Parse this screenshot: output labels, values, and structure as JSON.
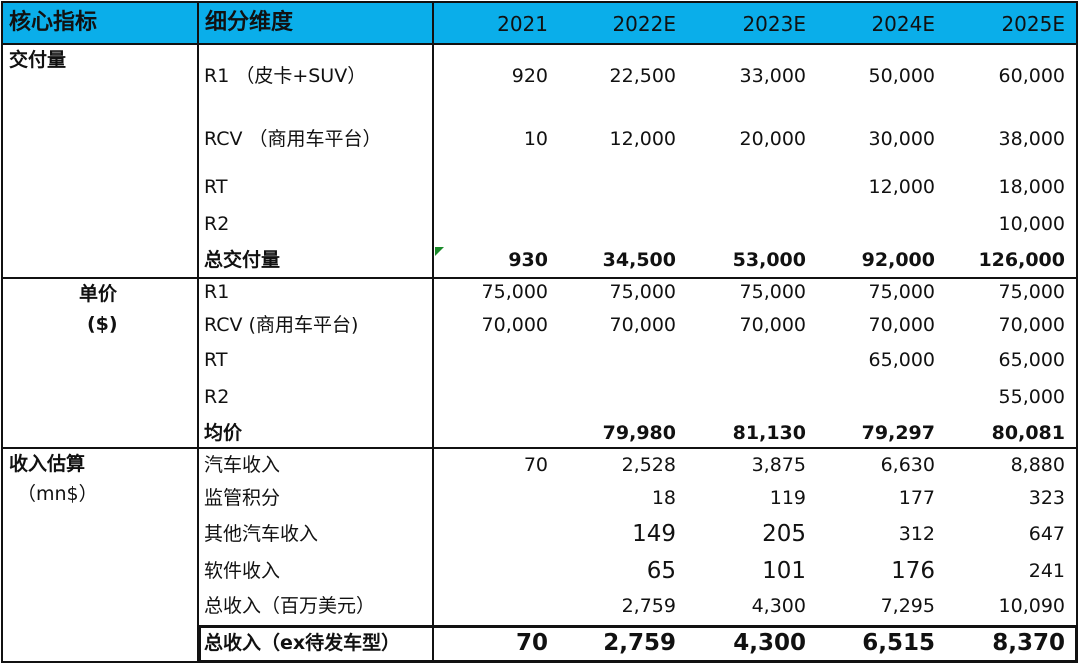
{
  "header": {
    "col_metric": "核心指标",
    "col_dimension": "细分维度",
    "years": [
      "2021",
      "2022E",
      "2023E",
      "2024E",
      "2025E"
    ]
  },
  "colors": {
    "header_bg": "#0aaeea",
    "border": "#111111"
  },
  "groups": [
    {
      "label": "交付量",
      "rows": [
        {
          "dimension": "R1 （皮卡+SUV）",
          "values": [
            "920",
            "22,500",
            "33,000",
            "50,000",
            "60,000"
          ]
        },
        {
          "dimension": "RCV （商用车平台）",
          "values": [
            "10",
            "12,000",
            "20,000",
            "30,000",
            "38,000"
          ]
        },
        {
          "dimension": "RT",
          "values": [
            "",
            "",
            "",
            "12,000",
            "18,000"
          ]
        },
        {
          "dimension": "R2",
          "values": [
            "",
            "",
            "",
            "",
            "10,000"
          ]
        },
        {
          "dimension": "总交付量",
          "values": [
            "930",
            "34,500",
            "53,000",
            "92,000",
            "126,000"
          ],
          "bold": true
        }
      ]
    },
    {
      "label": "单价",
      "sublabel": "($)",
      "rows": [
        {
          "dimension": "R1",
          "values": [
            "75,000",
            "75,000",
            "75,000",
            "75,000",
            "75,000"
          ]
        },
        {
          "dimension": "RCV (商用车平台)",
          "values": [
            "70,000",
            "70,000",
            "70,000",
            "70,000",
            "70,000"
          ]
        },
        {
          "dimension": "RT",
          "values": [
            "",
            "",
            "",
            "65,000",
            "65,000"
          ]
        },
        {
          "dimension": "R2",
          "values": [
            "",
            "",
            "",
            "",
            "55,000"
          ]
        },
        {
          "dimension": "均价",
          "values": [
            "",
            "79,980",
            "81,130",
            "79,297",
            "80,081"
          ],
          "bold": true
        }
      ]
    },
    {
      "label": "收入估算",
      "sublabel": "（mn$）",
      "rows": [
        {
          "dimension": "汽车收入",
          "values": [
            "70",
            "2,528",
            "3,875",
            "6,630",
            "8,880"
          ]
        },
        {
          "dimension": "监管积分",
          "values": [
            "",
            "18",
            "119",
            "177",
            "323"
          ]
        },
        {
          "dimension": "其他汽车收入",
          "values": [
            "",
            "149",
            "205",
            "312",
            "647"
          ]
        },
        {
          "dimension": "软件收入",
          "values": [
            "",
            "65",
            "101",
            "176",
            "241"
          ]
        },
        {
          "dimension": "总收入（百万美元）",
          "values": [
            "",
            "2,759",
            "4,300",
            "7,295",
            "10,090"
          ]
        },
        {
          "dimension": "总收入（ex待发车型）",
          "values": [
            "70",
            "2,759",
            "4,300",
            "6,515",
            "8,370"
          ],
          "bold": true
        }
      ]
    }
  ]
}
